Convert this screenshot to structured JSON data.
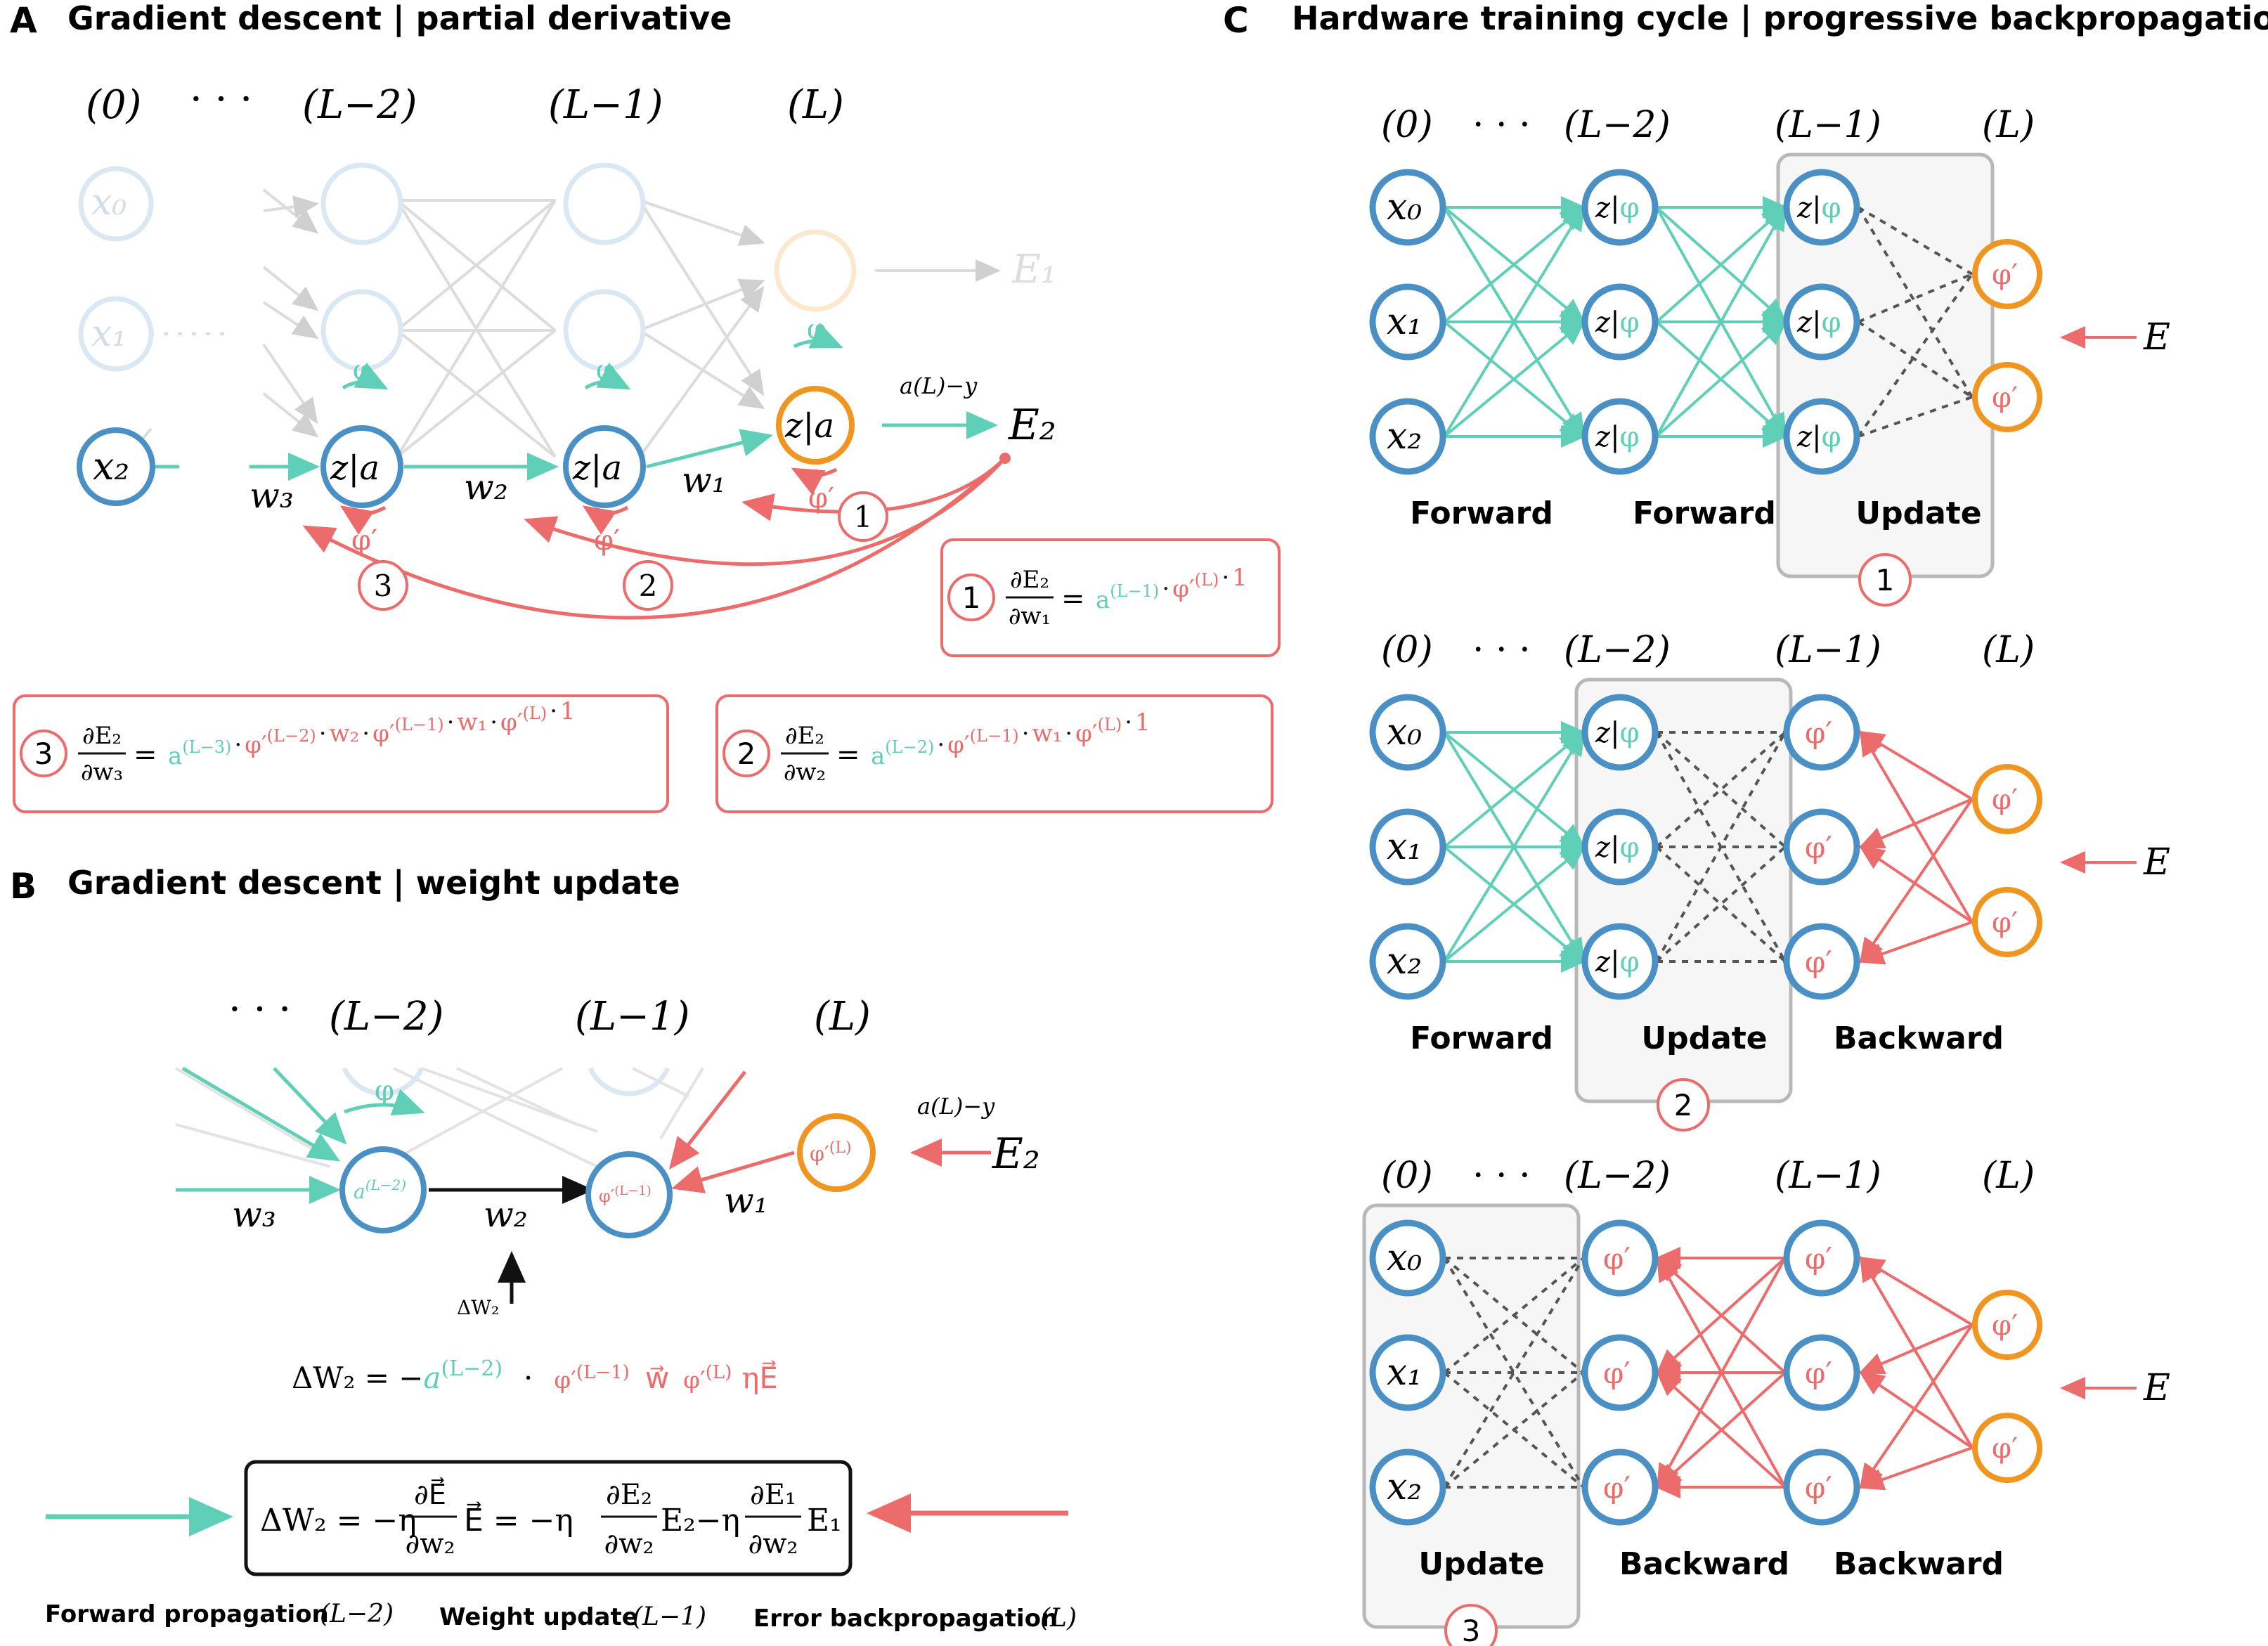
{
  "colors": {
    "teal": "#5fcfb7",
    "red": "#ec6b6b",
    "blue": "#4a90c4",
    "orange": "#f0951f",
    "gray": "#666666",
    "faint": "#d8d8d8",
    "faint_blue": "#cfe3f1",
    "update_fill": "#f6f6f6",
    "update_border": "#b8b8b8"
  },
  "panelA": {
    "letter": "A",
    "title": "Gradient descent | partial derivative",
    "layer_labels": [
      "(0)",
      "· · ·",
      "(L−2)",
      "(L−1)",
      "(L)"
    ],
    "inputs": [
      "x₀",
      "x₁",
      "x₂"
    ],
    "node_za": "z|a",
    "phi": "φ",
    "phi_prime": "φ′",
    "error_top": "E₁",
    "error_main": "E₂",
    "error_label": "a(L)−y",
    "weights": [
      "w₃",
      "w₂",
      "w₁"
    ],
    "markers": [
      "1",
      "2",
      "3"
    ],
    "eq1": {
      "num": "∂E₂",
      "den": "∂w₁",
      "equals": "=",
      "terms": [
        {
          "text": "a",
          "sup": "(L−1)",
          "color": "teal"
        },
        {
          "text": "·",
          "color": "black"
        },
        {
          "text": "φ′",
          "sup": "(L)",
          "color": "red"
        },
        {
          "text": "·",
          "color": "black"
        },
        {
          "text": "1",
          "color": "red"
        }
      ]
    },
    "eq2": {
      "num": "∂E₂",
      "den": "∂w₂",
      "equals": "=",
      "terms": [
        {
          "text": "a",
          "sup": "(L−2)",
          "color": "teal"
        },
        {
          "text": "·",
          "color": "black"
        },
        {
          "text": "φ′",
          "sup": "(L−1)",
          "color": "red"
        },
        {
          "text": "·",
          "color": "black"
        },
        {
          "text": "w₁",
          "color": "red"
        },
        {
          "text": "·",
          "color": "black"
        },
        {
          "text": "φ′",
          "sup": "(L)",
          "color": "red"
        },
        {
          "text": "·",
          "color": "black"
        },
        {
          "text": "1",
          "color": "red"
        }
      ]
    },
    "eq3": {
      "num": "∂E₂",
      "den": "∂w₃",
      "equals": "=",
      "terms": [
        {
          "text": "a",
          "sup": "(L−3)",
          "color": "teal"
        },
        {
          "text": "·",
          "color": "black"
        },
        {
          "text": "φ′",
          "sup": "(L−2)",
          "color": "red"
        },
        {
          "text": "·",
          "color": "black"
        },
        {
          "text": "w₂",
          "color": "red"
        },
        {
          "text": "·",
          "color": "black"
        },
        {
          "text": "φ′",
          "sup": "(L−1)",
          "color": "red"
        },
        {
          "text": "·",
          "color": "black"
        },
        {
          "text": "w₁",
          "color": "red"
        },
        {
          "text": "·",
          "color": "black"
        },
        {
          "text": "φ′",
          "sup": "(L)",
          "color": "red"
        },
        {
          "text": "·",
          "color": "black"
        },
        {
          "text": "1",
          "color": "red"
        }
      ]
    }
  },
  "panelB": {
    "letter": "B",
    "title": "Gradient descent | weight update",
    "layer_labels": [
      "· · ·",
      "(L−2)",
      "(L−1)",
      "(L)"
    ],
    "node_a": "a(L−2)",
    "node_phi_mid": "φ′(L−1)",
    "node_phi_out": "φ′(L)",
    "phi": "φ",
    "weights": [
      "w₃",
      "w₂",
      "w₁"
    ],
    "error_main": "E₂",
    "error_label": "a(L)−y",
    "delta_small": "ΔW₂",
    "update_eq": {
      "lhs": "ΔW₂ = −",
      "a": "a",
      "a_sup": "(L−2)",
      "dot": "·",
      "phi1": "φ′",
      "phi1_sup": "(L−1)",
      "w": "w⃗",
      "phi2": "φ′",
      "phi2_sup": "(L)",
      "eta_e": "ηE⃗"
    },
    "box_eq": {
      "lhs": "ΔW₂ = −η",
      "f1_num": "∂E⃗",
      "f1_den": "∂w₂",
      "mid1": "E⃗ = −η",
      "f2_num": "∂E₂",
      "f2_den": "∂w₂",
      "mid2": "E₂−η",
      "f3_num": "∂E₁",
      "f3_den": "∂w₂",
      "end": "E₁"
    },
    "legend": [
      "Forward propagation",
      "(L−2)",
      "Weight update",
      "(L−1)",
      "Error backpropagation",
      "(L)"
    ]
  },
  "panelC": {
    "letter": "C",
    "title": "Hardware training cycle | progressive backpropagation",
    "layer_labels": [
      "(0)",
      "· · ·",
      "(L−2)",
      "(L−1)",
      "(L)"
    ],
    "inputs": [
      "x₀",
      "x₁",
      "x₂"
    ],
    "node_zphi_z": "z|",
    "node_zphi_phi": "φ",
    "phi_prime": "φ′",
    "error": "E",
    "rows": [
      {
        "labels": [
          "Forward",
          "Forward",
          "Update"
        ],
        "step": "1"
      },
      {
        "labels": [
          "Forward",
          "Update",
          "Backward"
        ],
        "step": "2"
      },
      {
        "labels": [
          "Update",
          "Backward",
          "Backward"
        ],
        "step": "3"
      }
    ]
  }
}
